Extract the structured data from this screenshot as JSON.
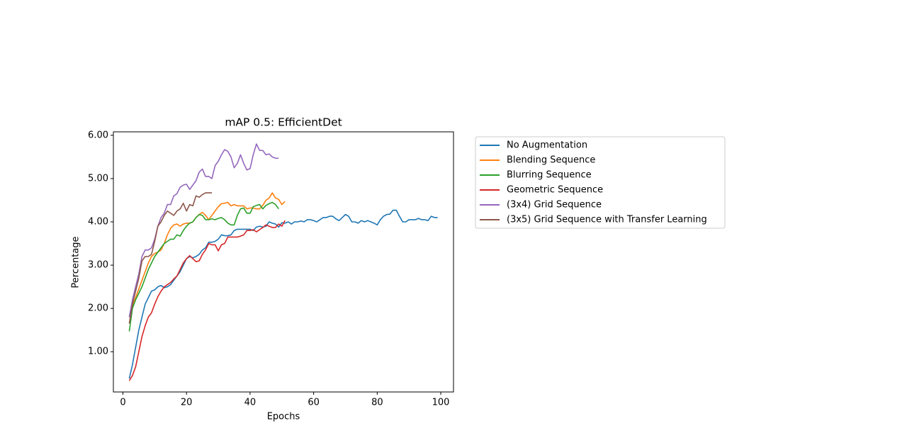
{
  "chart_data": {
    "type": "line",
    "title": "mAP 0.5: EfficientDet",
    "x_label": "Epochs",
    "y_label": "Percentage",
    "xlim": [
      -3,
      104
    ],
    "ylim": [
      0.07,
      6.08
    ],
    "xticks": [
      0,
      20,
      40,
      60,
      80,
      100
    ],
    "yticks": [
      {
        "value": 1,
        "label": "1.00"
      },
      {
        "value": 2,
        "label": "2.00"
      },
      {
        "value": 3,
        "label": "3.00"
      },
      {
        "value": 4,
        "label": "4.00"
      },
      {
        "value": 5,
        "label": "5.00"
      },
      {
        "value": 6,
        "label": "6.00"
      }
    ],
    "grid": false,
    "legend": "outside-right",
    "series": [
      {
        "name": "No Augmentation",
        "color": "#1f77b4",
        "x": [
          2,
          3,
          4,
          5,
          6,
          7,
          8,
          9,
          10,
          11,
          12,
          13,
          14,
          15,
          16,
          17,
          18,
          19,
          20,
          21,
          22,
          23,
          24,
          25,
          26,
          27,
          28,
          29,
          30,
          31,
          32,
          33,
          34,
          35,
          36,
          37,
          38,
          39,
          40,
          41,
          42,
          43,
          44,
          45,
          46,
          47,
          48,
          49,
          50,
          51,
          52,
          53,
          54,
          55,
          56,
          57,
          58,
          59,
          60,
          61,
          62,
          63,
          64,
          65,
          66,
          67,
          68,
          69,
          70,
          71,
          72,
          73,
          74,
          75,
          76,
          77,
          78,
          79,
          80,
          81,
          82,
          83,
          84,
          85,
          86,
          87,
          88,
          89,
          90,
          91,
          92,
          93,
          94,
          95,
          96,
          97,
          98,
          99
        ],
        "values": [
          0.38,
          0.7,
          1.1,
          1.5,
          1.8,
          2.1,
          2.25,
          2.4,
          2.43,
          2.5,
          2.53,
          2.48,
          2.5,
          2.55,
          2.65,
          2.75,
          2.85,
          3.0,
          3.15,
          3.2,
          3.17,
          3.2,
          3.25,
          3.35,
          3.4,
          3.53,
          3.53,
          3.55,
          3.6,
          3.7,
          3.68,
          3.68,
          3.7,
          3.8,
          3.83,
          3.83,
          3.83,
          3.83,
          3.83,
          3.8,
          3.88,
          3.9,
          3.88,
          3.9,
          4.0,
          3.97,
          3.95,
          3.88,
          3.98,
          3.97,
          4.0,
          3.95,
          4.0,
          4.0,
          4.02,
          4.0,
          4.05,
          4.05,
          4.03,
          4.0,
          4.05,
          4.1,
          4.1,
          4.13,
          4.13,
          4.07,
          4.03,
          4.1,
          4.17,
          4.13,
          4.0,
          4.0,
          3.97,
          4.03,
          4.0,
          4.03,
          4.0,
          3.97,
          3.93,
          4.05,
          4.13,
          4.17,
          4.18,
          4.27,
          4.27,
          4.13,
          4.0,
          4.0,
          4.05,
          4.05,
          4.05,
          4.08,
          4.05,
          4.05,
          4.03,
          4.13,
          4.1,
          4.1
        ]
      },
      {
        "name": "Blending Sequence",
        "color": "#ff7f0e",
        "x": [
          2,
          3,
          4,
          5,
          6,
          7,
          8,
          9,
          10,
          11,
          12,
          13,
          14,
          15,
          16,
          17,
          18,
          19,
          20,
          21,
          22,
          23,
          24,
          25,
          26,
          27,
          28,
          29,
          30,
          31,
          32,
          33,
          34,
          35,
          36,
          37,
          38,
          39,
          40,
          41,
          42,
          43,
          44,
          45,
          46,
          47,
          48,
          49,
          50,
          51
        ],
        "values": [
          1.8,
          2.05,
          2.25,
          2.45,
          2.65,
          2.85,
          3.05,
          3.2,
          3.27,
          3.3,
          3.35,
          3.5,
          3.7,
          3.85,
          3.93,
          3.95,
          3.9,
          3.95,
          3.97,
          3.97,
          4.0,
          4.1,
          4.17,
          4.22,
          4.15,
          4.05,
          4.15,
          4.25,
          4.35,
          4.42,
          4.43,
          4.45,
          4.37,
          4.4,
          4.37,
          4.37,
          4.37,
          4.3,
          4.32,
          4.32,
          4.3,
          4.3,
          4.38,
          4.5,
          4.55,
          4.67,
          4.55,
          4.52,
          4.4,
          4.47
        ]
      },
      {
        "name": "Blurring Sequence",
        "color": "#2ca02c",
        "x": [
          2,
          3,
          4,
          5,
          6,
          7,
          8,
          9,
          10,
          11,
          12,
          13,
          14,
          15,
          16,
          17,
          18,
          19,
          20,
          21,
          22,
          23,
          24,
          25,
          26,
          27,
          28,
          29,
          30,
          31,
          32,
          33,
          34,
          35,
          36,
          37,
          38,
          39,
          40,
          41,
          42,
          43,
          44,
          45,
          46,
          47,
          48,
          49
        ],
        "values": [
          1.47,
          2.0,
          2.2,
          2.35,
          2.5,
          2.7,
          2.9,
          3.05,
          3.2,
          3.3,
          3.4,
          3.5,
          3.55,
          3.6,
          3.6,
          3.7,
          3.67,
          3.8,
          3.9,
          3.97,
          4.0,
          4.1,
          4.17,
          4.15,
          4.05,
          4.05,
          4.07,
          4.05,
          4.08,
          4.1,
          4.05,
          3.97,
          3.93,
          3.93,
          4.15,
          4.3,
          4.32,
          4.2,
          4.2,
          4.35,
          4.38,
          4.4,
          4.3,
          4.38,
          4.42,
          4.45,
          4.4,
          4.3
        ]
      },
      {
        "name": "Geometric Sequence",
        "color": "#d62728",
        "x": [
          2,
          3,
          4,
          5,
          6,
          7,
          8,
          9,
          10,
          11,
          12,
          13,
          14,
          15,
          16,
          17,
          18,
          19,
          20,
          21,
          22,
          23,
          24,
          25,
          26,
          27,
          28,
          29,
          30,
          31,
          32,
          33,
          34,
          35,
          36,
          37,
          38,
          39,
          40,
          41,
          42,
          43,
          44,
          45,
          46,
          47,
          48,
          49,
          50,
          51
        ],
        "values": [
          0.33,
          0.45,
          0.65,
          1.0,
          1.35,
          1.6,
          1.8,
          1.9,
          2.1,
          2.27,
          2.4,
          2.5,
          2.55,
          2.6,
          2.68,
          2.75,
          2.9,
          3.05,
          3.15,
          3.22,
          3.15,
          3.08,
          3.1,
          3.25,
          3.35,
          3.5,
          3.47,
          3.47,
          3.33,
          3.47,
          3.5,
          3.65,
          3.65,
          3.65,
          3.65,
          3.67,
          3.7,
          3.8,
          3.8,
          3.82,
          3.77,
          3.82,
          3.87,
          3.93,
          3.9,
          3.87,
          3.87,
          3.95,
          3.9,
          4.03
        ]
      },
      {
        "name": "(3x4) Grid Sequence",
        "color": "#9467bd",
        "x": [
          2,
          3,
          4,
          5,
          6,
          7,
          8,
          9,
          10,
          11,
          12,
          13,
          14,
          15,
          16,
          17,
          18,
          19,
          20,
          21,
          22,
          23,
          24,
          25,
          26,
          27,
          28,
          29,
          30,
          31,
          32,
          33,
          34,
          35,
          36,
          37,
          38,
          39,
          40,
          41,
          42,
          43,
          44,
          45,
          46,
          47,
          48,
          49
        ],
        "values": [
          1.8,
          2.2,
          2.5,
          2.8,
          3.2,
          3.35,
          3.35,
          3.4,
          3.6,
          3.9,
          4.1,
          4.2,
          4.4,
          4.4,
          4.6,
          4.65,
          4.8,
          4.85,
          4.87,
          4.75,
          4.85,
          4.95,
          5.15,
          5.22,
          5.05,
          5.05,
          5.0,
          5.3,
          5.4,
          5.55,
          5.67,
          5.63,
          5.5,
          5.25,
          5.35,
          5.55,
          5.35,
          5.2,
          5.23,
          5.55,
          5.8,
          5.65,
          5.65,
          5.55,
          5.57,
          5.5,
          5.47,
          5.47
        ]
      },
      {
        "name": "(3x5) Grid Sequence with Transfer Learning",
        "color": "#8c564b",
        "x": [
          2,
          3,
          4,
          5,
          6,
          7,
          8,
          9,
          10,
          11,
          12,
          13,
          14,
          15,
          16,
          17,
          18,
          19,
          20,
          21,
          22,
          23,
          24,
          25,
          26,
          27,
          28
        ],
        "values": [
          1.65,
          2.1,
          2.4,
          2.7,
          3.1,
          3.2,
          3.2,
          3.25,
          3.55,
          3.9,
          4.0,
          4.15,
          4.25,
          4.2,
          4.15,
          4.25,
          4.3,
          4.43,
          4.25,
          4.4,
          4.37,
          4.6,
          4.57,
          4.63,
          4.67,
          4.67,
          4.67
        ]
      }
    ]
  }
}
